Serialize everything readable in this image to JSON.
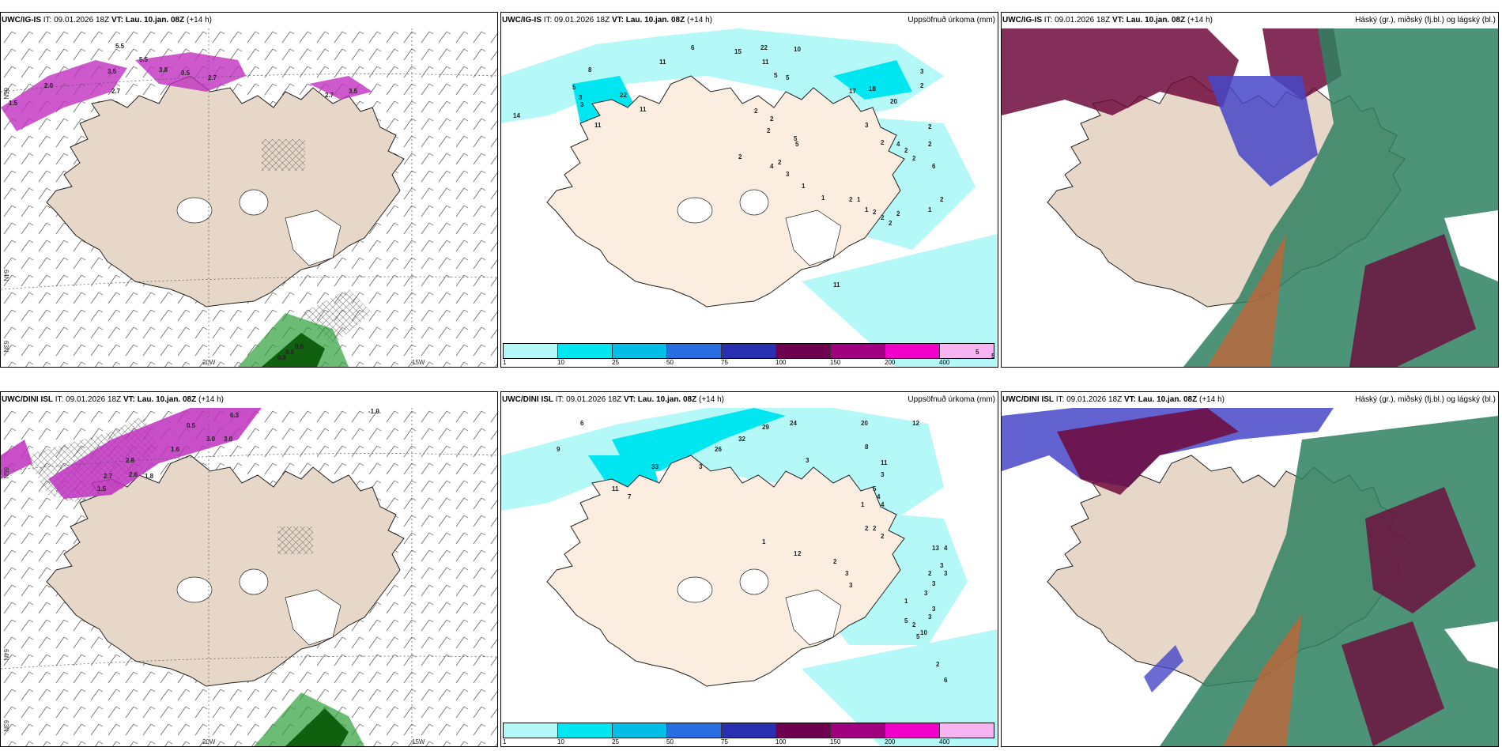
{
  "panels": [
    {
      "model": "UWC/IG-IS",
      "it": "IT: 09.01.2026 18Z",
      "vt_label": "VT:",
      "vt": "Lau. 10.jan. 08Z",
      "lead": "(+14 h)",
      "title": "",
      "labels": [
        "5.5",
        "5.5",
        "3.8",
        "3.5",
        "2.7",
        "2.7",
        "2.0",
        "0.5",
        "1.5",
        "0.6",
        "0.6",
        "0.8",
        "2.7",
        "3.5"
      ],
      "axis": {
        "x": [
          "20W",
          "15W"
        ],
        "y": [
          "65N",
          "64N",
          "63N"
        ]
      }
    },
    {
      "model": "UWC/IG-IS",
      "it": "IT: 09.01.2026 18Z",
      "vt_label": "VT:",
      "vt": "Lau. 10.jan. 08Z",
      "lead": "(+14 h)",
      "title": "Uppsöfnuð úrkoma (mm)",
      "labels": [
        "6",
        "15",
        "22",
        "10",
        "11",
        "8",
        "11",
        "5",
        "5",
        "17",
        "18",
        "20",
        "3",
        "2",
        "14",
        "22",
        "11",
        "11",
        "5",
        "3",
        "3",
        "2",
        "2",
        "2",
        "5",
        "5",
        "2",
        "3",
        "2",
        "4",
        "2",
        "2",
        "2",
        "6",
        "2",
        "2",
        "4",
        "3",
        "1",
        "1",
        "2",
        "1",
        "1",
        "2",
        "2",
        "2",
        "1",
        "2",
        "2",
        "11",
        "5",
        "5"
      ],
      "colorbar": {
        "ticks": [
          "1",
          "10",
          "25",
          "50",
          "75",
          "100",
          "150",
          "200",
          "400"
        ],
        "colors": [
          "#b4f8f8",
          "#00e6f0",
          "#00bee6",
          "#286ee0",
          "#2830b0",
          "#6e0050",
          "#a00080",
          "#f000c8",
          "#f8b4f0"
        ]
      }
    },
    {
      "model": "UWC/IG-IS",
      "it": "IT: 09.01.2026 18Z",
      "vt_label": "VT:",
      "vt": "Lau. 10.jan. 08Z",
      "lead": "(+14 h)",
      "title": "Háský (gr.), miðský (fj.bl.) og lágský (bl.)"
    },
    {
      "model": "UWC/DINI ISL",
      "it": "IT: 09.01.2026 18Z",
      "vt_label": "VT:",
      "vt": "Lau. 10.jan. 08Z",
      "lead": "(+14 h)",
      "title": "",
      "labels": [
        "0.5",
        "6.3",
        "3.0",
        "3.0",
        "1.6",
        "2.8",
        "2.6",
        "2.7",
        "1.5",
        "1.8",
        "-1.0"
      ],
      "axis": {
        "x": [
          "20W",
          "15W"
        ],
        "y": [
          "65N",
          "64N",
          "63N"
        ]
      }
    },
    {
      "model": "UWC/DINI ISL",
      "it": "IT: 09.01.2026 18Z",
      "vt_label": "VT:",
      "vt": "Lau. 10.jan. 08Z",
      "lead": "(+14 h)",
      "title": "Uppsöfnuð úrkoma (mm)",
      "labels": [
        "6",
        "32",
        "29",
        "24",
        "20",
        "12",
        "26",
        "9",
        "33",
        "3",
        "3",
        "8",
        "11",
        "3",
        "11",
        "7",
        "5",
        "4",
        "4",
        "1",
        "2",
        "2",
        "2",
        "1",
        "1",
        "2",
        "13",
        "4",
        "3",
        "3",
        "2",
        "3",
        "3",
        "3",
        "3",
        "2",
        "2",
        "3",
        "3",
        "1",
        "5",
        "5",
        "2",
        "6",
        "10"
      ],
      "colorbar": {
        "ticks": [
          "1",
          "10",
          "25",
          "50",
          "75",
          "100",
          "150",
          "200",
          "400"
        ],
        "colors": [
          "#b4f8f8",
          "#00e6f0",
          "#00bee6",
          "#286ee0",
          "#2830b0",
          "#6e0050",
          "#a00080",
          "#f000c8",
          "#f8b4f0"
        ]
      }
    },
    {
      "model": "UWC/DINI ISL",
      "it": "IT: 09.01.2026 18Z",
      "vt_label": "VT:",
      "vt": "Lau. 10.jan. 08Z",
      "lead": "(+14 h)",
      "title": "Háský (gr.), miðský (fj.bl.) og lágský (bl.)"
    }
  ],
  "colors": {
    "land": "#e6d7c8",
    "land_light": "#fbeee0",
    "precip_light": "#b4f8f8",
    "cloud_high": "#2e8060",
    "cloud_mid": "#6e0a3c",
    "cloud_low": "#4646c8"
  }
}
